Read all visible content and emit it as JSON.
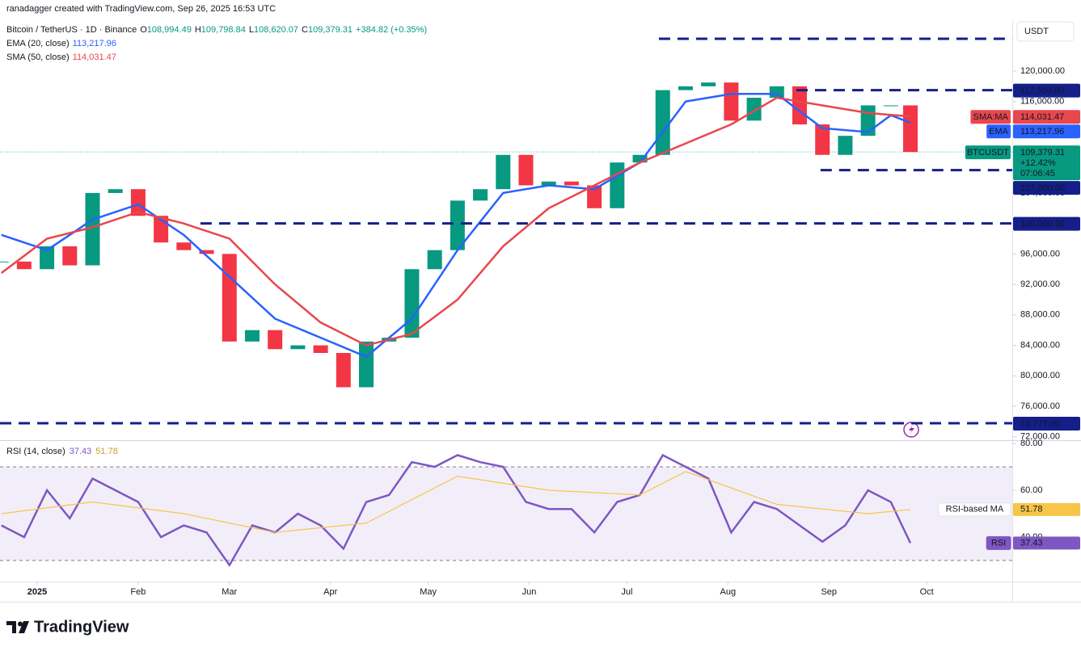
{
  "header": {
    "attribution": "ranadagger created with TradingView.com, Sep 26, 2025 16:53 UTC",
    "symbol": "Bitcoin / TetherUS · 1D · Binance",
    "ohlc": [
      {
        "label": "O",
        "value": "108,994.49"
      },
      {
        "label": "H",
        "value": "109,798.84"
      },
      {
        "label": "L",
        "value": "108,620.07"
      },
      {
        "label": "C",
        "value": "109,379.31"
      }
    ],
    "change": "+384.82 (+0.35%)"
  },
  "chart_data": [
    {
      "type": "candlestick",
      "currency": "USDT",
      "up_color": "#089981",
      "down_color": "#f23645",
      "level_color": "#141f8a",
      "xlim": [
        -11.41,
        299.26
      ],
      "xticks": [
        {
          "value": 0,
          "label": "2025"
        },
        {
          "value": 31,
          "label": "Feb"
        },
        {
          "value": 59,
          "label": "Mar"
        },
        {
          "value": 90,
          "label": "Apr"
        },
        {
          "value": 120,
          "label": "May"
        },
        {
          "value": 151,
          "label": "Jun"
        },
        {
          "value": 181,
          "label": "Jul"
        },
        {
          "value": 212,
          "label": "Aug"
        },
        {
          "value": 243,
          "label": "Sep"
        },
        {
          "value": 273,
          "label": "Oct"
        }
      ],
      "ylim": [
        71550,
        126680
      ],
      "yticks": [
        {
          "value": 72000,
          "label": "72,000.00"
        },
        {
          "value": 76000,
          "label": "76,000.00"
        },
        {
          "value": 80000,
          "label": "80,000.00"
        },
        {
          "value": 84000,
          "label": "84,000.00"
        },
        {
          "value": 88000,
          "label": "88,000.00"
        },
        {
          "value": 92000,
          "label": "92,000.00"
        },
        {
          "value": 96000,
          "label": "96,000.00"
        },
        {
          "value": 100000,
          "label": "100,000.00"
        },
        {
          "value": 104000,
          "label": "104,000.00"
        },
        {
          "value": 108000,
          "label": "108,000.00"
        },
        {
          "value": 112000,
          "label": "112,000.00"
        },
        {
          "value": 116000,
          "label": "116,000.00"
        },
        {
          "value": 120000,
          "label": "120,000.00"
        }
      ],
      "levels": [
        {
          "value": 124240,
          "start": 190.8
        },
        {
          "value": 117500,
          "label": "117,500.00",
          "start": 233
        },
        {
          "value": 107000,
          "label": "107,000.00",
          "start": 240.4
        },
        {
          "value": 100000,
          "label": "100,000.00",
          "start": 50.1
        },
        {
          "value": 73777,
          "label": "73,777.00",
          "start": -11.41
        }
      ],
      "series": [
        {
          "name": "BTCUSDT",
          "style": "candles",
          "color": "#089981",
          "x": [
            -11,
            -4,
            3,
            10,
            17,
            24,
            31,
            38,
            45,
            52,
            59,
            66,
            73,
            80,
            87,
            94,
            101,
            108,
            115,
            122,
            129,
            136,
            143,
            150,
            157,
            164,
            171,
            178,
            185,
            192,
            199,
            206,
            213,
            220,
            227,
            234,
            241,
            248,
            255,
            262,
            268
          ],
          "values": [
            95000,
            94000,
            97000,
            94500,
            104000,
            104500,
            101000,
            97500,
            96500,
            96000,
            84500,
            86000,
            83500,
            84000,
            83000,
            78500,
            84500,
            85000,
            94000,
            96500,
            103000,
            104500,
            109000,
            105000,
            105500,
            105000,
            102000,
            108000,
            109000,
            117500,
            118000,
            118500,
            113500,
            116500,
            118000,
            113000,
            109000,
            111500,
            115500,
            115500,
            109379.31
          ],
          "last_label": "109,379.31",
          "badge_change": "+12.42%",
          "badge_timer": "07:06:45"
        },
        {
          "name": "EMA (20, close)",
          "badge": "EMA",
          "style": "line",
          "color": "#2962ff",
          "x": [
            -11,
            3,
            17,
            31,
            45,
            59,
            73,
            87,
            101,
            115,
            129,
            143,
            157,
            171,
            185,
            199,
            213,
            227,
            241,
            255,
            262,
            268
          ],
          "values": [
            98500,
            96500,
            100500,
            102500,
            98500,
            93000,
            87500,
            85000,
            82500,
            87500,
            96500,
            104000,
            105000,
            104500,
            108000,
            116000,
            117000,
            117000,
            112500,
            112000,
            114200,
            113217.96
          ],
          "last_label": "113,217.96"
        },
        {
          "name": "SMA (50, close)",
          "badge": "SMA:MA",
          "style": "line",
          "color": "#e8474d",
          "x": [
            -11,
            3,
            17,
            31,
            45,
            59,
            73,
            87,
            101,
            115,
            129,
            143,
            157,
            171,
            185,
            199,
            213,
            227,
            241,
            255,
            268
          ],
          "values": [
            93500,
            98000,
            99500,
            101500,
            100000,
            98000,
            92000,
            87000,
            84000,
            85500,
            90000,
            97000,
            102000,
            105000,
            108000,
            110500,
            113000,
            116500,
            115500,
            114500,
            114031.47
          ],
          "last_label": "114,031.47"
        }
      ]
    },
    {
      "type": "line",
      "title": "RSI (14, close)",
      "band_color": "#7e57c2",
      "xlim": [
        -11.41,
        299.26
      ],
      "ylim": [
        21,
        81.4
      ],
      "yticks": [
        {
          "value": 40,
          "label": "40.00"
        },
        {
          "value": 60,
          "label": "60.00"
        },
        {
          "value": 80,
          "label": "80.00"
        }
      ],
      "bands": [
        30,
        70
      ],
      "series": [
        {
          "name": "RSI",
          "color": "#7e57c2",
          "x": [
            -11,
            -4,
            3,
            10,
            17,
            24,
            31,
            38,
            45,
            52,
            59,
            66,
            73,
            80,
            87,
            94,
            101,
            108,
            115,
            122,
            129,
            136,
            143,
            150,
            157,
            164,
            171,
            178,
            185,
            192,
            199,
            206,
            213,
            220,
            227,
            234,
            241,
            248,
            255,
            262,
            268
          ],
          "values": [
            45,
            40,
            60,
            48,
            65,
            60,
            55,
            40,
            45,
            42,
            28,
            45,
            42,
            50,
            45,
            35,
            55,
            58,
            72,
            70,
            75,
            72,
            70,
            55,
            52,
            52,
            42,
            55,
            58,
            75,
            70,
            65,
            42,
            55,
            52,
            45,
            38,
            45,
            60,
            55,
            37.43
          ],
          "last_label": "37.43"
        },
        {
          "name": "RSI-based MA",
          "color": "#f7c548",
          "x": [
            -11,
            17,
            45,
            73,
            101,
            129,
            157,
            185,
            199,
            227,
            255,
            268
          ],
          "values": [
            50,
            55,
            50,
            42,
            46,
            66,
            60,
            58,
            68,
            54,
            50,
            51.78
          ],
          "last_label": "51.78"
        }
      ]
    }
  ],
  "footer": {
    "brand": "TradingView"
  }
}
